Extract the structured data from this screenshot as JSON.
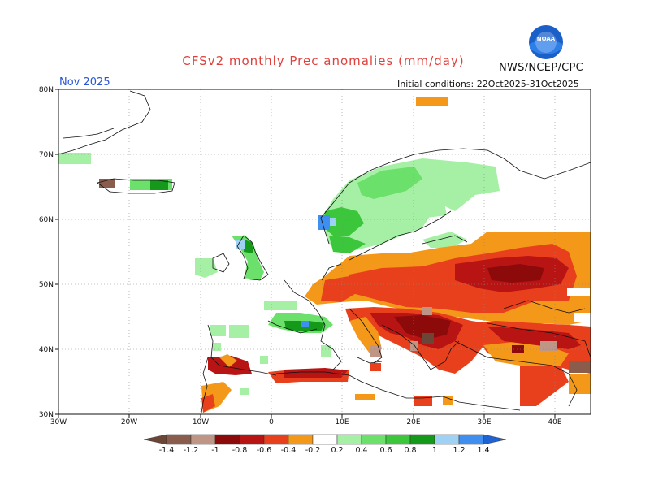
{
  "header": {
    "title": "CFSv2 monthly Prec anomalies (mm/day)",
    "agency": "NWS/NCEP/CPC",
    "logo_text": "NOAA",
    "month": "Nov 2025",
    "initial_conditions": "Initial conditions: 22Oct2025-31Oct2025"
  },
  "map": {
    "lat_labels": [
      "80N",
      "70N",
      "60N",
      "50N",
      "40N",
      "30N"
    ],
    "lon_labels": [
      "30W",
      "20W",
      "10W",
      "0",
      "10E",
      "20E",
      "30E",
      "40E"
    ],
    "lon_range": [
      -30,
      45
    ],
    "lat_range": [
      30,
      80
    ],
    "land_color": "#ffffff",
    "grid": "dotted"
  },
  "colorbar": {
    "labels": [
      "-1.4",
      "-1.2",
      "-1",
      "-0.8",
      "-0.6",
      "-0.4",
      "-0.2",
      "0.2",
      "0.4",
      "0.6",
      "0.8",
      "1",
      "1.2",
      "1.4"
    ],
    "colors": [
      "#6b4636",
      "#8a5c4c",
      "#bf9585",
      "#8c0a0a",
      "#b81414",
      "#e8401c",
      "#f39818",
      "#ffffff",
      "#a6f0a6",
      "#6be06b",
      "#3cc63c",
      "#15991a",
      "#9fd1f5",
      "#3f8ff0",
      "#1e62d4"
    ]
  }
}
